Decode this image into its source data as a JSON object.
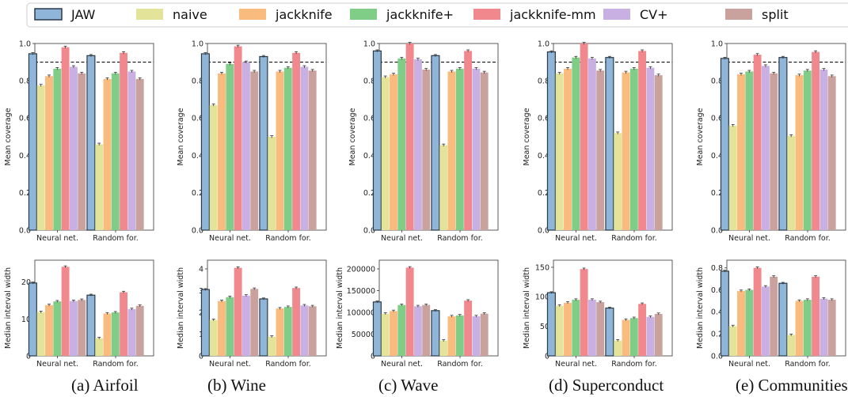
{
  "legend": {
    "items": [
      {
        "name": "JAW",
        "color": "#8fb6d8",
        "edge": "#2a3a48"
      },
      {
        "name": "naive",
        "color": "#e3e39a"
      },
      {
        "name": "jackknife",
        "color": "#f9bb7e"
      },
      {
        "name": "jackknife+",
        "color": "#7fcd87"
      },
      {
        "name": "jackknife-mm",
        "color": "#f0888d"
      },
      {
        "name": "CV+",
        "color": "#c9b0e2"
      },
      {
        "name": "split",
        "color": "#c9a29e"
      }
    ]
  },
  "chart_data": [
    {
      "type": "bar",
      "dataset": "Airfoil",
      "caption": "(a) Airfoil",
      "categories": [
        "Neural net.",
        "Random for."
      ],
      "ylabel": "Mean coverage",
      "ylim": [
        0,
        1
      ],
      "yticks": [
        "0.0",
        "0.2",
        "0.4",
        "0.6",
        "0.8",
        "1.0"
      ],
      "yticks_values": [
        0,
        0.2,
        0.4,
        0.6,
        0.8,
        1.0
      ],
      "reference_line": 0.9,
      "series": [
        {
          "name": "JAW",
          "values": [
            0.945,
            0.935
          ]
        },
        {
          "name": "naive",
          "values": [
            0.775,
            0.46
          ]
        },
        {
          "name": "jackknife",
          "values": [
            0.825,
            0.81
          ]
        },
        {
          "name": "jackknife+",
          "values": [
            0.865,
            0.84
          ]
        },
        {
          "name": "jackknife-mm",
          "values": [
            0.98,
            0.95
          ]
        },
        {
          "name": "CV+",
          "values": [
            0.875,
            0.85
          ]
        },
        {
          "name": "split",
          "values": [
            0.84,
            0.81
          ]
        }
      ]
    },
    {
      "type": "bar",
      "dataset": "Wine",
      "caption": "(b) Wine",
      "categories": [
        "Neural net.",
        "Random for."
      ],
      "ylabel": "Mean coverage",
      "ylim": [
        0,
        1
      ],
      "yticks": [
        "0.0",
        "0.2",
        "0.4",
        "0.6",
        "0.8",
        "1.0"
      ],
      "yticks_values": [
        0,
        0.2,
        0.4,
        0.6,
        0.8,
        1.0
      ],
      "reference_line": 0.9,
      "series": [
        {
          "name": "JAW",
          "values": [
            0.945,
            0.93
          ]
        },
        {
          "name": "naive",
          "values": [
            0.67,
            0.5
          ]
        },
        {
          "name": "jackknife",
          "values": [
            0.84,
            0.85
          ]
        },
        {
          "name": "jackknife+",
          "values": [
            0.89,
            0.87
          ]
        },
        {
          "name": "jackknife-mm",
          "values": [
            0.985,
            0.95
          ]
        },
        {
          "name": "CV+",
          "values": [
            0.9,
            0.875
          ]
        },
        {
          "name": "split",
          "values": [
            0.85,
            0.855
          ]
        }
      ]
    },
    {
      "type": "bar",
      "dataset": "Wave",
      "caption": "(c) Wave",
      "categories": [
        "Neural net.",
        "Random for."
      ],
      "ylabel": "Mean coverage",
      "ylim": [
        0,
        1
      ],
      "yticks": [
        "0.0",
        "0.2",
        "0.4",
        "0.6",
        "0.8",
        "1.0"
      ],
      "yticks_values": [
        0,
        0.2,
        0.4,
        0.6,
        0.8,
        1.0
      ],
      "reference_line": 0.9,
      "series": [
        {
          "name": "JAW",
          "values": [
            0.96,
            0.935
          ]
        },
        {
          "name": "naive",
          "values": [
            0.82,
            0.455
          ]
        },
        {
          "name": "jackknife",
          "values": [
            0.835,
            0.85
          ]
        },
        {
          "name": "jackknife+",
          "values": [
            0.92,
            0.865
          ]
        },
        {
          "name": "jackknife-mm",
          "values": [
            1.0,
            0.96
          ]
        },
        {
          "name": "CV+",
          "values": [
            0.915,
            0.865
          ]
        },
        {
          "name": "split",
          "values": [
            0.86,
            0.845
          ]
        }
      ]
    },
    {
      "type": "bar",
      "dataset": "Superconduct",
      "caption": "(d) Superconduct",
      "categories": [
        "Neural net.",
        "Random for."
      ],
      "ylabel": "Mean coverage",
      "ylim": [
        0,
        1
      ],
      "yticks": [
        "0.0",
        "0.2",
        "0.4",
        "0.6",
        "0.8",
        "1.0"
      ],
      "yticks_values": [
        0,
        0.2,
        0.4,
        0.6,
        0.8,
        1.0
      ],
      "reference_line": 0.9,
      "series": [
        {
          "name": "JAW",
          "values": [
            0.955,
            0.925
          ]
        },
        {
          "name": "naive",
          "values": [
            0.84,
            0.52
          ]
        },
        {
          "name": "jackknife",
          "values": [
            0.865,
            0.845
          ]
        },
        {
          "name": "jackknife+",
          "values": [
            0.925,
            0.865
          ]
        },
        {
          "name": "jackknife-mm",
          "values": [
            1.0,
            0.96
          ]
        },
        {
          "name": "CV+",
          "values": [
            0.92,
            0.87
          ]
        },
        {
          "name": "split",
          "values": [
            0.855,
            0.83
          ]
        }
      ]
    },
    {
      "type": "bar",
      "dataset": "Communities",
      "caption": "(e) Communities",
      "categories": [
        "Neural net.",
        "Random for."
      ],
      "ylabel": "Mean coverage",
      "ylim": [
        0,
        1
      ],
      "yticks": [
        "0.0",
        "0.2",
        "0.4",
        "0.6",
        "0.8",
        "1.0"
      ],
      "yticks_values": [
        0,
        0.2,
        0.4,
        0.6,
        0.8,
        1.0
      ],
      "reference_line": 0.9,
      "series": [
        {
          "name": "JAW",
          "values": [
            0.92,
            0.925
          ]
        },
        {
          "name": "naive",
          "values": [
            0.56,
            0.505
          ]
        },
        {
          "name": "jackknife",
          "values": [
            0.835,
            0.83
          ]
        },
        {
          "name": "jackknife+",
          "values": [
            0.85,
            0.855
          ]
        },
        {
          "name": "jackknife-mm",
          "values": [
            0.94,
            0.955
          ]
        },
        {
          "name": "CV+",
          "values": [
            0.88,
            0.86
          ]
        },
        {
          "name": "split",
          "values": [
            0.84,
            0.825
          ]
        }
      ]
    },
    {
      "type": "bar",
      "dataset": "Airfoil",
      "categories": [
        "Neural net.",
        "Random for."
      ],
      "ylabel": "Median interval width",
      "ylim": [
        0,
        26
      ],
      "yticks": [
        "0",
        "10",
        "20"
      ],
      "yticks_values": [
        0,
        10,
        20
      ],
      "series": [
        {
          "name": "JAW",
          "values": [
            19.8,
            16.5
          ]
        },
        {
          "name": "naive",
          "values": [
            11.9,
            4.8
          ]
        },
        {
          "name": "jackknife",
          "values": [
            13.8,
            11.5
          ]
        },
        {
          "name": "jackknife+",
          "values": [
            14.8,
            11.8
          ]
        },
        {
          "name": "jackknife-mm",
          "values": [
            24.2,
            17.3
          ]
        },
        {
          "name": "CV+",
          "values": [
            14.9,
            12.7
          ]
        },
        {
          "name": "split",
          "values": [
            15.2,
            13.6
          ]
        }
      ]
    },
    {
      "type": "bar",
      "dataset": "Wine",
      "categories": [
        "Neural net.",
        "Random for."
      ],
      "ylabel": "Median interval width",
      "ylim": [
        0,
        4.4
      ],
      "yticks": [
        "0",
        "1",
        "2",
        "3",
        "4"
      ],
      "yticks_values": [
        0,
        1,
        2,
        3,
        4
      ],
      "series": [
        {
          "name": "JAW",
          "values": [
            3.05,
            2.62
          ]
        },
        {
          "name": "naive",
          "values": [
            1.65,
            0.88
          ]
        },
        {
          "name": "jackknife",
          "values": [
            2.52,
            2.18
          ]
        },
        {
          "name": "jackknife+",
          "values": [
            2.7,
            2.25
          ]
        },
        {
          "name": "jackknife-mm",
          "values": [
            4.05,
            3.12
          ]
        },
        {
          "name": "CV+",
          "values": [
            2.77,
            2.32
          ]
        },
        {
          "name": "split",
          "values": [
            3.08,
            2.28
          ]
        }
      ]
    },
    {
      "type": "bar",
      "dataset": "Wave",
      "categories": [
        "Neural net.",
        "Random for."
      ],
      "ylabel": "Median interval width",
      "ylim": [
        0,
        220000
      ],
      "yticks": [
        "0",
        "50000",
        "100000",
        "150000",
        "200000"
      ],
      "yticks_values": [
        0,
        50000,
        100000,
        150000,
        200000
      ],
      "series": [
        {
          "name": "JAW",
          "values": [
            124000,
            104000
          ]
        },
        {
          "name": "naive",
          "values": [
            97000,
            35000
          ]
        },
        {
          "name": "jackknife",
          "values": [
            103000,
            91000
          ]
        },
        {
          "name": "jackknife+",
          "values": [
            117000,
            93000
          ]
        },
        {
          "name": "jackknife-mm",
          "values": [
            203000,
            127000
          ]
        },
        {
          "name": "CV+",
          "values": [
            114000,
            91000
          ]
        },
        {
          "name": "split",
          "values": [
            117000,
            97000
          ]
        }
      ]
    },
    {
      "type": "bar",
      "dataset": "Superconduct",
      "categories": [
        "Neural net.",
        "Random for."
      ],
      "ylabel": "Median interval width",
      "ylim": [
        0,
        162
      ],
      "yticks": [
        "0",
        "50",
        "100",
        "150"
      ],
      "yticks_values": [
        0,
        50,
        100,
        150
      ],
      "series": [
        {
          "name": "JAW",
          "values": [
            107,
            81
          ]
        },
        {
          "name": "naive",
          "values": [
            85,
            26
          ]
        },
        {
          "name": "jackknife",
          "values": [
            90,
            61
          ]
        },
        {
          "name": "jackknife+",
          "values": [
            95,
            64
          ]
        },
        {
          "name": "jackknife-mm",
          "values": [
            147,
            88
          ]
        },
        {
          "name": "CV+",
          "values": [
            95,
            66
          ]
        },
        {
          "name": "split",
          "values": [
            91,
            71
          ]
        }
      ]
    },
    {
      "type": "bar",
      "dataset": "Communities",
      "categories": [
        "Neural net.",
        "Random for."
      ],
      "ylabel": "Median interval width",
      "ylim": [
        0,
        0.87
      ],
      "yticks": [
        "0.0",
        "0.2",
        "0.4",
        "0.6",
        "0.8"
      ],
      "yticks_values": [
        0,
        0.2,
        0.4,
        0.6,
        0.8
      ],
      "series": [
        {
          "name": "JAW",
          "values": [
            0.77,
            0.66
          ]
        },
        {
          "name": "naive",
          "values": [
            0.27,
            0.19
          ]
        },
        {
          "name": "jackknife",
          "values": [
            0.59,
            0.5
          ]
        },
        {
          "name": "jackknife+",
          "values": [
            0.6,
            0.51
          ]
        },
        {
          "name": "jackknife-mm",
          "values": [
            0.8,
            0.72
          ]
        },
        {
          "name": "CV+",
          "values": [
            0.63,
            0.52
          ]
        },
        {
          "name": "split",
          "values": [
            0.72,
            0.51
          ]
        }
      ]
    }
  ]
}
